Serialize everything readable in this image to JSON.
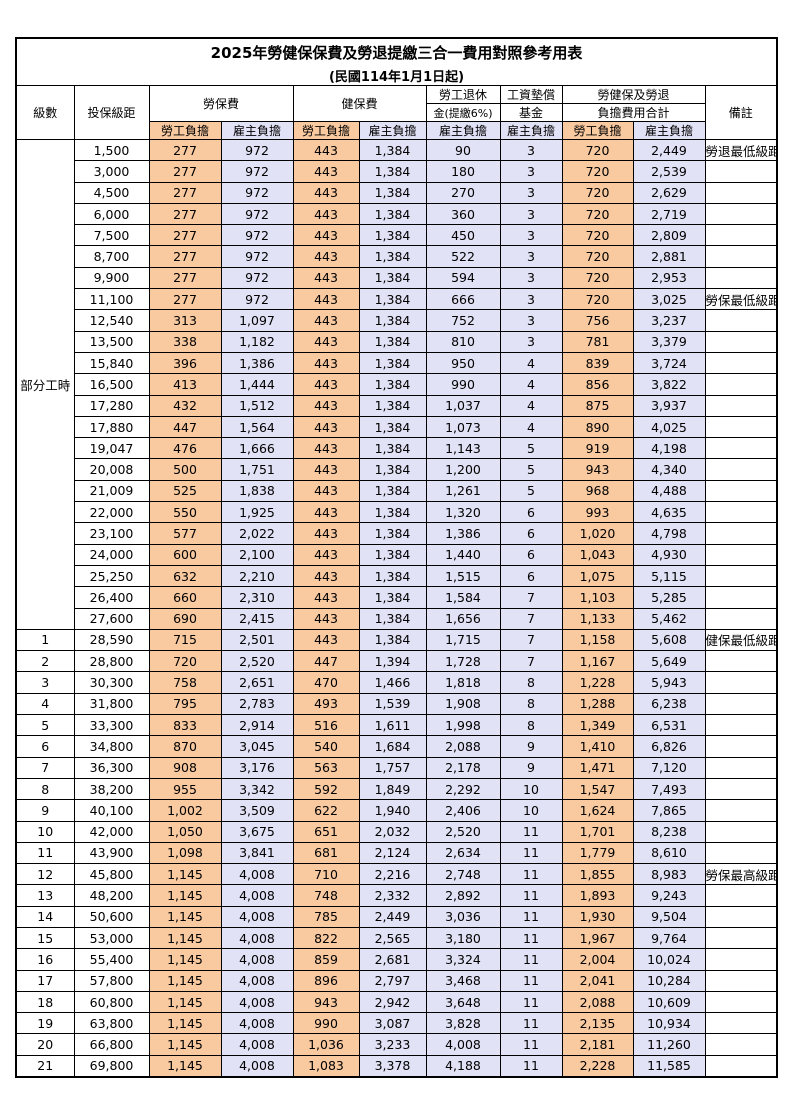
{
  "title": "2025年勞健保保費及勞退提繳三合一費用對照參考用表",
  "subtitle": "(民國114年1月1日起)",
  "headers": {
    "grade": "級數",
    "insured": "投保級距",
    "labor": "勞保費",
    "health": "健保費",
    "pension": [
      "勞工退休",
      "金(提繳6%)"
    ],
    "wage": [
      "工資墊償",
      "基金"
    ],
    "total": [
      "勞健保及勞退",
      "負擔費用合計"
    ],
    "note": "備註",
    "sub": [
      "勞工負擔",
      "雇主負擔",
      "勞工負擔",
      "雇主負擔",
      "雇主負擔",
      "雇主負擔",
      "勞工負擔",
      "雇主負擔"
    ]
  },
  "part_time": {
    "label": "部分工時",
    "rows": [
      [
        "1,500",
        "277",
        "972",
        "443",
        "1,384",
        "90",
        "3",
        "720",
        "2,449",
        "勞退最低級距"
      ],
      [
        "3,000",
        "277",
        "972",
        "443",
        "1,384",
        "180",
        "3",
        "720",
        "2,539"
      ],
      [
        "4,500",
        "277",
        "972",
        "443",
        "1,384",
        "270",
        "3",
        "720",
        "2,629"
      ],
      [
        "6,000",
        "277",
        "972",
        "443",
        "1,384",
        "360",
        "3",
        "720",
        "2,719"
      ],
      [
        "7,500",
        "277",
        "972",
        "443",
        "1,384",
        "450",
        "3",
        "720",
        "2,809"
      ],
      [
        "8,700",
        "277",
        "972",
        "443",
        "1,384",
        "522",
        "3",
        "720",
        "2,881"
      ],
      [
        "9,900",
        "277",
        "972",
        "443",
        "1,384",
        "594",
        "3",
        "720",
        "2,953"
      ],
      [
        "11,100",
        "277",
        "972",
        "443",
        "1,384",
        "666",
        "3",
        "720",
        "3,025",
        "勞保最低級距"
      ],
      [
        "12,540",
        "313",
        "1,097",
        "443",
        "1,384",
        "752",
        "3",
        "756",
        "3,237"
      ],
      [
        "13,500",
        "338",
        "1,182",
        "443",
        "1,384",
        "810",
        "3",
        "781",
        "3,379"
      ],
      [
        "15,840",
        "396",
        "1,386",
        "443",
        "1,384",
        "950",
        "4",
        "839",
        "3,724"
      ],
      [
        "16,500",
        "413",
        "1,444",
        "443",
        "1,384",
        "990",
        "4",
        "856",
        "3,822"
      ],
      [
        "17,280",
        "432",
        "1,512",
        "443",
        "1,384",
        "1,037",
        "4",
        "875",
        "3,937"
      ],
      [
        "17,880",
        "447",
        "1,564",
        "443",
        "1,384",
        "1,073",
        "4",
        "890",
        "4,025"
      ],
      [
        "19,047",
        "476",
        "1,666",
        "443",
        "1,384",
        "1,143",
        "5",
        "919",
        "4,198"
      ],
      [
        "20,008",
        "500",
        "1,751",
        "443",
        "1,384",
        "1,200",
        "5",
        "943",
        "4,340"
      ],
      [
        "21,009",
        "525",
        "1,838",
        "443",
        "1,384",
        "1,261",
        "5",
        "968",
        "4,488"
      ],
      [
        "22,000",
        "550",
        "1,925",
        "443",
        "1,384",
        "1,320",
        "6",
        "993",
        "4,635"
      ],
      [
        "23,100",
        "577",
        "2,022",
        "443",
        "1,384",
        "1,386",
        "6",
        "1,020",
        "4,798"
      ],
      [
        "24,000",
        "600",
        "2,100",
        "443",
        "1,384",
        "1,440",
        "6",
        "1,043",
        "4,930"
      ],
      [
        "25,250",
        "632",
        "2,210",
        "443",
        "1,384",
        "1,515",
        "6",
        "1,075",
        "5,115"
      ],
      [
        "26,400",
        "660",
        "2,310",
        "443",
        "1,384",
        "1,584",
        "7",
        "1,103",
        "5,285"
      ],
      [
        "27,600",
        "690",
        "2,415",
        "443",
        "1,384",
        "1,656",
        "7",
        "1,133",
        "5,462"
      ]
    ]
  },
  "rows": [
    [
      "1",
      "28,590",
      "715",
      "2,501",
      "443",
      "1,384",
      "1,715",
      "7",
      "1,158",
      "5,608",
      "健保最低級距"
    ],
    [
      "2",
      "28,800",
      "720",
      "2,520",
      "447",
      "1,394",
      "1,728",
      "7",
      "1,167",
      "5,649"
    ],
    [
      "3",
      "30,300",
      "758",
      "2,651",
      "470",
      "1,466",
      "1,818",
      "8",
      "1,228",
      "5,943"
    ],
    [
      "4",
      "31,800",
      "795",
      "2,783",
      "493",
      "1,539",
      "1,908",
      "8",
      "1,288",
      "6,238"
    ],
    [
      "5",
      "33,300",
      "833",
      "2,914",
      "516",
      "1,611",
      "1,998",
      "8",
      "1,349",
      "6,531"
    ],
    [
      "6",
      "34,800",
      "870",
      "3,045",
      "540",
      "1,684",
      "2,088",
      "9",
      "1,410",
      "6,826"
    ],
    [
      "7",
      "36,300",
      "908",
      "3,176",
      "563",
      "1,757",
      "2,178",
      "9",
      "1,471",
      "7,120"
    ],
    [
      "8",
      "38,200",
      "955",
      "3,342",
      "592",
      "1,849",
      "2,292",
      "10",
      "1,547",
      "7,493"
    ],
    [
      "9",
      "40,100",
      "1,002",
      "3,509",
      "622",
      "1,940",
      "2,406",
      "10",
      "1,624",
      "7,865"
    ],
    [
      "10",
      "42,000",
      "1,050",
      "3,675",
      "651",
      "2,032",
      "2,520",
      "11",
      "1,701",
      "8,238"
    ],
    [
      "11",
      "43,900",
      "1,098",
      "3,841",
      "681",
      "2,124",
      "2,634",
      "11",
      "1,779",
      "8,610"
    ],
    [
      "12",
      "45,800",
      "1,145",
      "4,008",
      "710",
      "2,216",
      "2,748",
      "11",
      "1,855",
      "8,983",
      "勞保最高級距"
    ],
    [
      "13",
      "48,200",
      "1,145",
      "4,008",
      "748",
      "2,332",
      "2,892",
      "11",
      "1,893",
      "9,243"
    ],
    [
      "14",
      "50,600",
      "1,145",
      "4,008",
      "785",
      "2,449",
      "3,036",
      "11",
      "1,930",
      "9,504"
    ],
    [
      "15",
      "53,000",
      "1,145",
      "4,008",
      "822",
      "2,565",
      "3,180",
      "11",
      "1,967",
      "9,764"
    ],
    [
      "16",
      "55,400",
      "1,145",
      "4,008",
      "859",
      "2,681",
      "3,324",
      "11",
      "2,004",
      "10,024"
    ],
    [
      "17",
      "57,800",
      "1,145",
      "4,008",
      "896",
      "2,797",
      "3,468",
      "11",
      "2,041",
      "10,284"
    ],
    [
      "18",
      "60,800",
      "1,145",
      "4,008",
      "943",
      "2,942",
      "3,648",
      "11",
      "2,088",
      "10,609"
    ],
    [
      "19",
      "63,800",
      "1,145",
      "4,008",
      "990",
      "3,087",
      "3,828",
      "11",
      "2,135",
      "10,934"
    ],
    [
      "20",
      "66,800",
      "1,145",
      "4,008",
      "1,036",
      "3,233",
      "4,008",
      "11",
      "2,181",
      "11,260"
    ],
    [
      "21",
      "69,800",
      "1,145",
      "4,008",
      "1,083",
      "3,378",
      "4,188",
      "11",
      "2,228",
      "11,585"
    ]
  ]
}
